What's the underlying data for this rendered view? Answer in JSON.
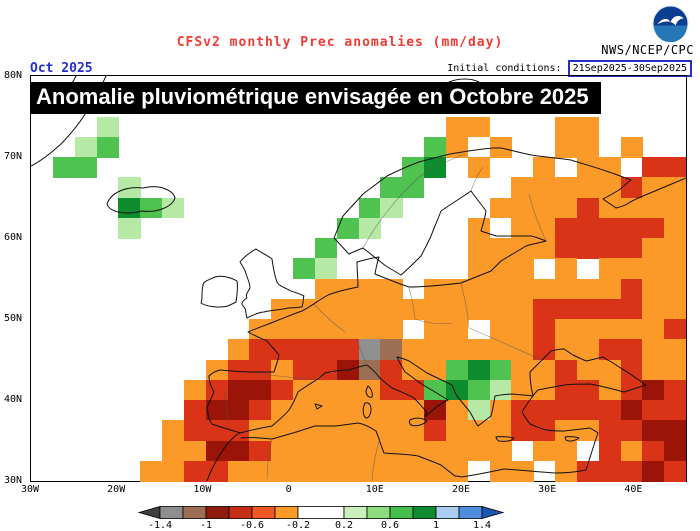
{
  "header": {
    "title": "CFSv2 monthly Prec anomalies (mm/day)",
    "forecast_month": "Oct 2025",
    "initial_conditions_label": "Initial conditions:",
    "initial_conditions_value": "21Sep2025-30Sep2025",
    "agency": "NWS/NCEP/CPC"
  },
  "overlay_banner": "Anomalie pluviométrique envisagée en Octobre 2025",
  "map": {
    "lat_ticks": [
      "80N",
      "70N",
      "60N",
      "50N",
      "40N",
      "30N"
    ],
    "lon_ticks": [
      "30W",
      "20W",
      "10W",
      "0",
      "10E",
      "20E",
      "30E",
      "40E"
    ],
    "anomaly_palette": {
      "O": "#fb9a28",
      "R": "#d93418",
      "D": "#9a1408",
      "N": "#9c6e54",
      "Y": "#909090",
      "g": "#b6e8a6",
      "G": "#4fc24f",
      "E": "#0e8c2e"
    },
    "anomaly_grid": [
      "..............................",
      "..............................",
      "...g...............OO...OO....",
      "..gG..............GO.O..OO.O..",
      ".GG..............GE.O..O.OO.RR",
      "....g...........GG....OOOOOROO",
      "....EGg........Gg....OOOOROOOO",
      "....g.........Gg....O.OORRRRRO",
      ".............G......OOOORRRROO",
      "............Gg......OOO.O.OOOO",
      ".............OOOO.OOOOOOOOOROO",
      "...........OOOOOOOOOOOORRRRROO",
      "..........OOOOOOO.OO.OOROOOOOR",
      ".........ORRRRRYNOOOOOOROORROO",
      "........ORRORRDNROOGEGOOROOROO",
      ".......ORDDROOOORRGEGgOORRORDR",
      ".......RDDROOOOOOODOgORRRRRDRR",
      "......ORRROOOOOOOOROOORROORRDD",
      "......OODDROOOOOOOOOOO.OO.RORD",
      ".....OORROOOOOOOOOOO.OO.ORRRDR"
    ]
  },
  "colorbar": {
    "tick_labels": [
      "-1.4",
      "-1",
      "-0.6",
      "-0.2",
      "0.2",
      "0.6",
      "1",
      "1.4"
    ],
    "segments": [
      {
        "color": "#3f3f3f",
        "shape": "arrow-left"
      },
      {
        "color": "#8e8e8e"
      },
      {
        "color": "#9c6e54"
      },
      {
        "color": "#8f1d0f"
      },
      {
        "color": "#c62e16"
      },
      {
        "color": "#ef5823"
      },
      {
        "color": "#fb9a28"
      },
      {
        "color": "#ffffff",
        "wide": true
      },
      {
        "color": "#c9f0bc"
      },
      {
        "color": "#8fdc7f"
      },
      {
        "color": "#44be4c"
      },
      {
        "color": "#0f8c31"
      },
      {
        "color": "#aacdf1"
      },
      {
        "color": "#4f8ede"
      },
      {
        "color": "#1d56b0",
        "shape": "arrow-right"
      }
    ]
  }
}
